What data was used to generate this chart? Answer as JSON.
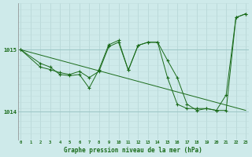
{
  "title": "Graphe pression niveau de la mer (hPa)",
  "bg_color": "#ceeaea",
  "grid_color_v": "#b8d8d8",
  "grid_color_h": "#c0dcdc",
  "line_color": "#1a6b1a",
  "x_ticks": [
    0,
    1,
    2,
    3,
    4,
    5,
    6,
    7,
    8,
    9,
    10,
    11,
    12,
    13,
    14,
    15,
    16,
    17,
    18,
    19,
    20,
    21,
    22,
    23
  ],
  "xlim": [
    -0.3,
    23.3
  ],
  "ylim": [
    1013.55,
    1015.75
  ],
  "yticks": [
    1014,
    1015
  ],
  "series1": [
    [
      0,
      1015.0
    ],
    [
      2,
      1014.72
    ],
    [
      3,
      1014.68
    ],
    [
      4,
      1014.63
    ],
    [
      5,
      1014.6
    ],
    [
      6,
      1014.65
    ],
    [
      7,
      1014.55
    ],
    [
      8,
      1014.65
    ],
    [
      9,
      1015.05
    ],
    [
      10,
      1015.12
    ],
    [
      11,
      1014.67
    ],
    [
      12,
      1015.07
    ],
    [
      13,
      1015.12
    ],
    [
      14,
      1015.12
    ],
    [
      15,
      1014.83
    ],
    [
      16,
      1014.55
    ],
    [
      17,
      1014.12
    ],
    [
      18,
      1014.02
    ],
    [
      19,
      1014.05
    ],
    [
      20,
      1014.02
    ],
    [
      21,
      1014.27
    ],
    [
      22,
      1015.52
    ],
    [
      23,
      1015.58
    ]
  ],
  "series2": [
    [
      0,
      1015.0
    ],
    [
      2,
      1014.78
    ],
    [
      3,
      1014.72
    ],
    [
      4,
      1014.6
    ],
    [
      5,
      1014.58
    ],
    [
      6,
      1014.6
    ],
    [
      7,
      1014.38
    ],
    [
      8,
      1014.68
    ],
    [
      9,
      1015.08
    ],
    [
      10,
      1015.15
    ],
    [
      11,
      1014.67
    ],
    [
      12,
      1015.07
    ],
    [
      13,
      1015.12
    ],
    [
      14,
      1015.12
    ],
    [
      15,
      1014.55
    ],
    [
      16,
      1014.12
    ],
    [
      17,
      1014.05
    ],
    [
      18,
      1014.05
    ],
    [
      19,
      1014.05
    ],
    [
      20,
      1014.02
    ],
    [
      21,
      1014.02
    ],
    [
      22,
      1015.52
    ],
    [
      23,
      1015.58
    ]
  ],
  "series3": [
    [
      0,
      1015.0
    ],
    [
      23,
      1014.02
    ]
  ]
}
